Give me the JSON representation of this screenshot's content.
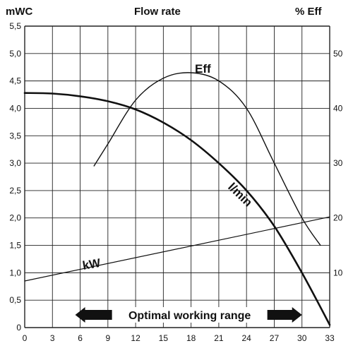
{
  "header": {
    "left_axis_title": "mWC",
    "center_title": "Flow rate",
    "right_axis_title": "% Eff"
  },
  "range": {
    "label": "Optimal working range",
    "from": 6,
    "to": 30
  },
  "chart_data": {
    "type": "line",
    "title": "Flow rate",
    "xlabel": "",
    "ylabel": "mWC",
    "y2label": "% Eff",
    "xlim": [
      0,
      33
    ],
    "ylim": [
      0,
      5.5
    ],
    "y2lim": [
      0,
      55
    ],
    "x_ticks": [
      "0",
      "3",
      "6",
      "9",
      "12",
      "15",
      "18",
      "21",
      "24",
      "27",
      "30",
      "33"
    ],
    "y_ticks": [
      "0",
      "0,5",
      "1,0",
      "1,5",
      "2,0",
      "2,5",
      "3,0",
      "3,5",
      "4,0",
      "4,5",
      "5,0",
      "5,5"
    ],
    "y2_ticks": [
      "10",
      "20",
      "30",
      "40",
      "50"
    ],
    "grid": true,
    "series": [
      {
        "name": "l/min",
        "axis": "left",
        "x": [
          0,
          3,
          6,
          9,
          12,
          15,
          18,
          21,
          24,
          27,
          30,
          33
        ],
        "y": [
          4.28,
          4.27,
          4.22,
          4.13,
          3.98,
          3.74,
          3.42,
          3.0,
          2.5,
          1.85,
          1.0,
          0.05
        ]
      },
      {
        "name": "Eff",
        "axis": "right",
        "x": [
          7.5,
          9,
          12,
          15,
          18,
          21,
          24,
          27,
          30,
          32
        ],
        "y": [
          29.5,
          33.5,
          41.5,
          45.5,
          46.5,
          45,
          40,
          30,
          20,
          15
        ]
      },
      {
        "name": "kW",
        "axis": "left",
        "x": [
          0,
          33
        ],
        "y": [
          0.85,
          2.02
        ]
      }
    ],
    "annotations": [
      "Eff",
      "l/min",
      "kW"
    ]
  }
}
